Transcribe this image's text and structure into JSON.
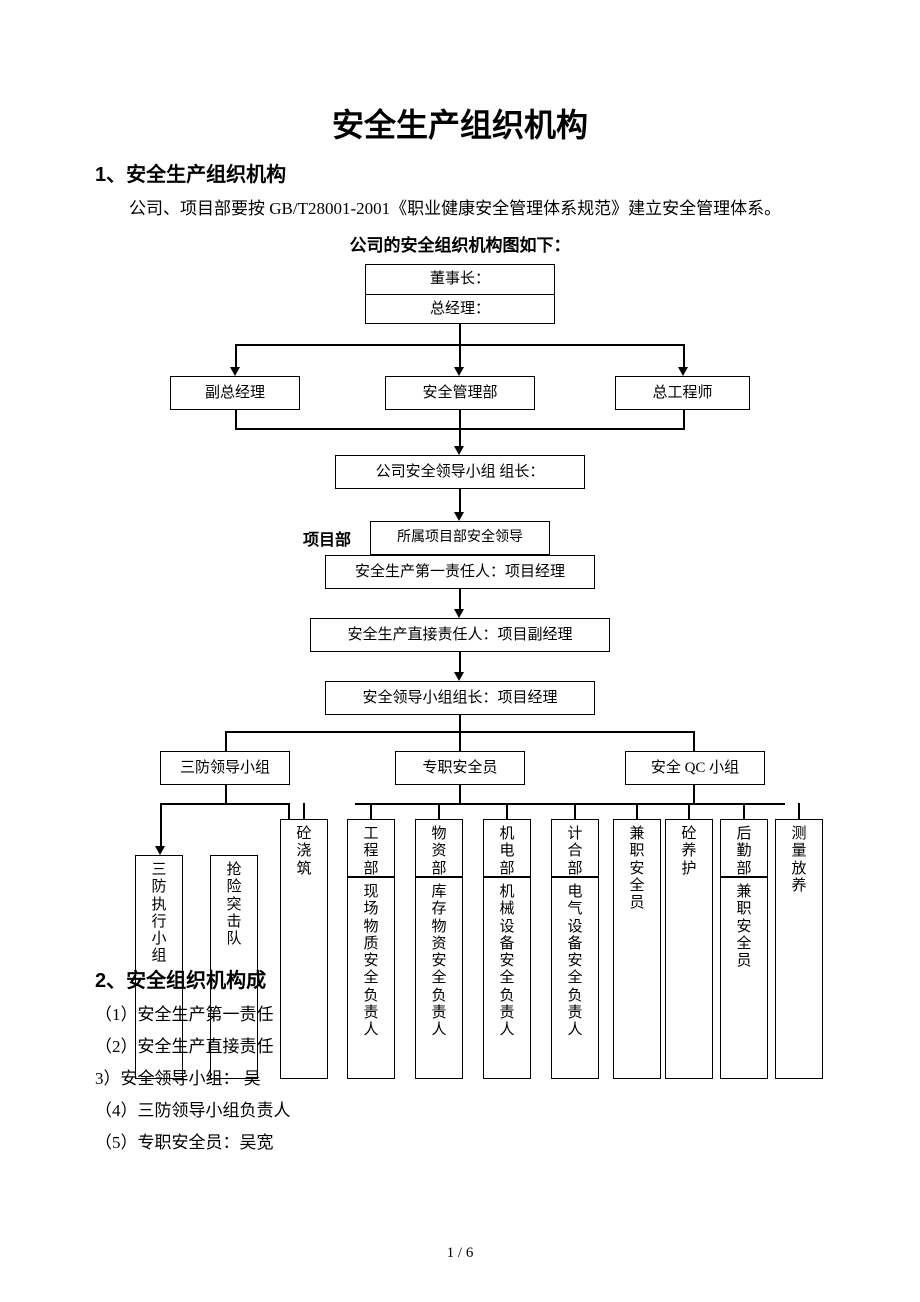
{
  "title": "安全生产组织机构",
  "section1": {
    "heading": "1、安全生产组织机构",
    "para": "公司、项目部要按 GB/T28001-2001《职业健康安全管理体系规范》建立安全管理体系。",
    "caption": "公司的安全组织机构图如下：",
    "nodes": {
      "chairman": "董事长：",
      "gm": "总经理：",
      "vgm": "副总经理",
      "safety_dept": "安全管理部",
      "chief_eng": "总工程师",
      "company_group": "公司安全领导小组  组长：",
      "proj_label": "项目部",
      "proj_group": "所属项目部安全领导",
      "first_resp": "安全生产第一责任人：项目经理",
      "direct_resp": "安全生产直接责任人：项目副经理",
      "lead_group": "安全领导小组组长：项目经理",
      "sanfang": "三防领导小组",
      "fulltime": "专职安全员",
      "qc": "安全 QC 小组"
    },
    "leaves": [
      {
        "top": "",
        "body": "三防执行小组"
      },
      {
        "top": "",
        "body": "抢险突击队"
      },
      {
        "top": "",
        "body": "砼浇筑"
      },
      {
        "top": "工程部",
        "body": "现场物质安全负责人"
      },
      {
        "top": "物资部",
        "body": "库存物资安全负责人"
      },
      {
        "top": "机电部",
        "body": "机械设备安全负责人"
      },
      {
        "top": "计合部",
        "body": "电气设备安全负责人"
      },
      {
        "top": "",
        "body": "兼职安全员"
      },
      {
        "top": "",
        "body": "砼养护"
      },
      {
        "top": "后勤部",
        "body": "兼职安全员"
      },
      {
        "top": "",
        "body": "测量放养"
      }
    ]
  },
  "section2": {
    "heading": "2、安全组织机构成",
    "items": [
      "（1）安全生产第一责任",
      "（2）安全生产直接责任",
      "3）安全领导小组：  吴",
      "（4）三防领导小组负责人",
      "（5）专职安全员：吴宽"
    ]
  },
  "pagenum": "1 / 6",
  "style": {
    "box_border": "#000000",
    "font_main": 17,
    "font_title": 32
  }
}
